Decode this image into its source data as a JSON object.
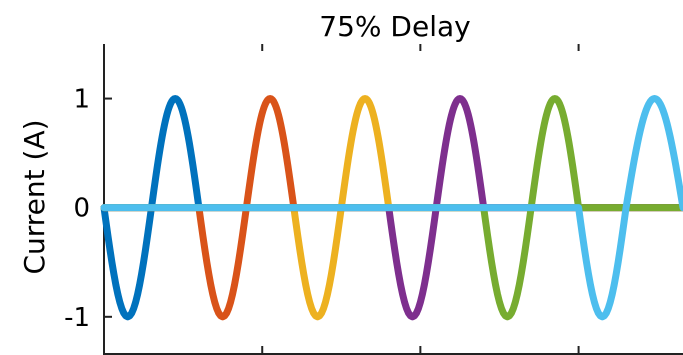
{
  "chart_data": {
    "type": "line",
    "title": "75% Delay",
    "xlabel": "",
    "ylabel": "Current (A)",
    "ylim": [
      -1.35,
      1.5
    ],
    "xlim": [
      0,
      6.1
    ],
    "yticks": [
      {
        "value": 1,
        "label": "1"
      },
      {
        "value": 0,
        "label": "0"
      },
      {
        "value": -1,
        "label": "-1"
      }
    ],
    "xticks": [
      {
        "value": 1.667,
        "label": ""
      },
      {
        "value": 3.333,
        "label": ""
      },
      {
        "value": 5.0,
        "label": ""
      }
    ],
    "grid": false,
    "legend": "none",
    "x": [
      0,
      0.342,
      0.5,
      0.658,
      1.0,
      1.342,
      1.5,
      1.658,
      2.0,
      2.342,
      2.5,
      2.658,
      3.0,
      3.342,
      3.5,
      3.658,
      4.0,
      4.342,
      4.5,
      4.658,
      5.0,
      5.342,
      5.5,
      5.658,
      6.0,
      6.1
    ],
    "series": [
      {
        "color": "#0072BD",
        "values": [
          0,
          -1,
          0,
          1,
          0,
          0,
          0,
          0,
          0,
          0,
          0,
          0,
          0,
          0,
          0,
          0,
          0,
          0,
          0,
          0,
          0,
          0,
          0,
          0,
          0,
          0
        ]
      },
      {
        "color": "#D95319",
        "values": [
          0,
          0,
          0,
          0,
          0,
          -1,
          0,
          1,
          0,
          0,
          0,
          0,
          0,
          0,
          0,
          0,
          0,
          0,
          0,
          0,
          0,
          0,
          0,
          0,
          0,
          0
        ]
      },
      {
        "color": "#EDB120",
        "values": [
          0,
          0,
          0,
          0,
          0,
          0,
          0,
          0,
          0,
          -1,
          0,
          1,
          0,
          0,
          0,
          0,
          0,
          0,
          0,
          0,
          0,
          0,
          0,
          0,
          0,
          0
        ]
      },
      {
        "color": "#7E2F8E",
        "values": [
          0,
          0,
          0,
          0,
          0,
          0,
          0,
          0,
          0,
          0,
          0,
          0,
          0,
          -1,
          0,
          1,
          0,
          0,
          0,
          0,
          0,
          0,
          0,
          0,
          0,
          0
        ]
      },
      {
        "color": "#77AC30",
        "values": [
          0,
          0,
          0,
          0,
          0,
          0,
          0,
          0,
          0,
          0,
          0,
          0,
          0,
          0,
          0,
          0,
          0,
          -1,
          0,
          1,
          0,
          0,
          0,
          0,
          0,
          0
        ]
      },
      {
        "color": "#4DBEEE",
        "values": [
          0,
          0,
          0,
          0,
          0,
          0,
          0,
          0,
          0,
          0,
          0,
          0,
          0,
          0,
          0,
          0,
          0,
          0,
          0,
          0,
          0,
          -1,
          0,
          1,
          0.5,
          0
        ]
      }
    ]
  }
}
